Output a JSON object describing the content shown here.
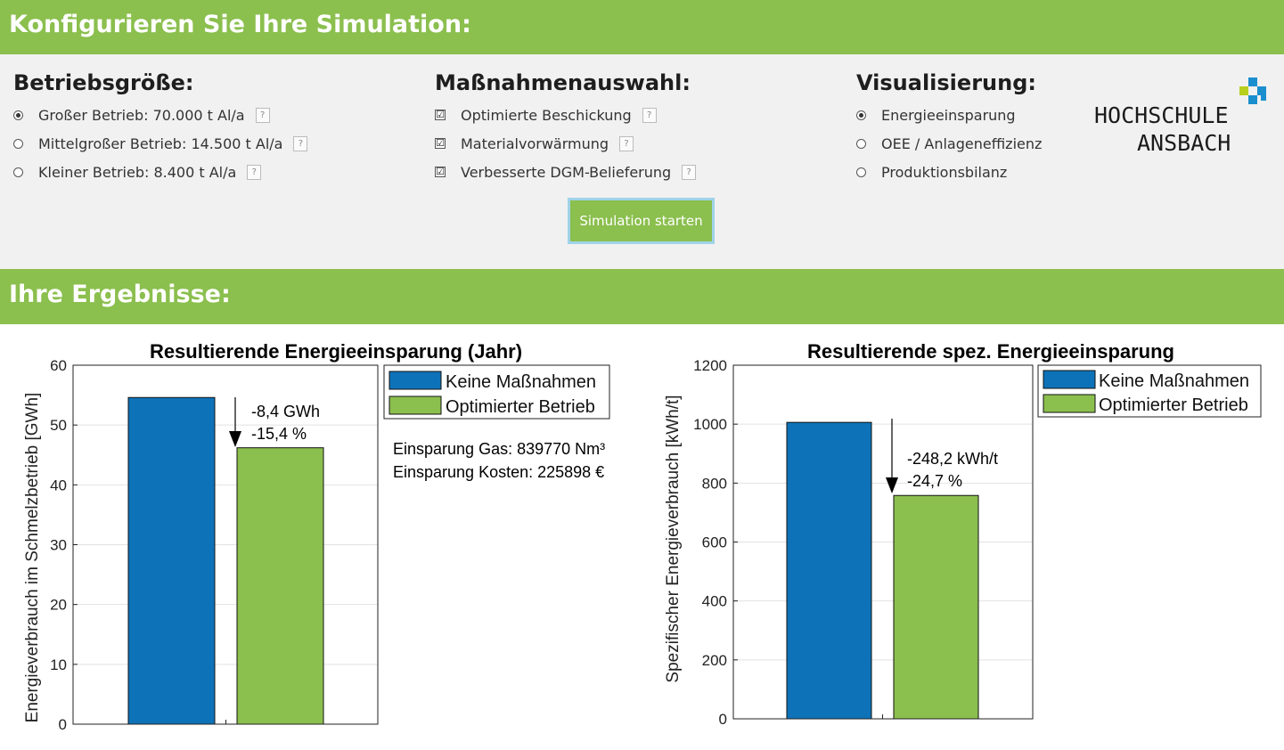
{
  "config_banner": {
    "title": "Konfigurieren Sie Ihre Simulation:"
  },
  "results_banner": {
    "title": "Ihre Ergebnisse:"
  },
  "colors": {
    "banner": "#8bbf4e",
    "series_none": "#0e72b8",
    "series_opt": "#8bbf4e",
    "logo_blue": "#1b8fce",
    "logo_lime": "#b9cf1e"
  },
  "size_group": {
    "heading": "Betriebsgröße:",
    "options": [
      {
        "label": "Großer Betrieb: 70.000 t Al/a",
        "selected": true
      },
      {
        "label": "Mittelgroßer Betrieb: 14.500 t Al/a",
        "selected": false
      },
      {
        "label": "Kleiner Betrieb: 8.400 t Al/a",
        "selected": false
      }
    ]
  },
  "measures_group": {
    "heading": "Maßnahmenauswahl:",
    "options": [
      {
        "label": "Optimierte Beschickung",
        "checked": true
      },
      {
        "label": "Materialvorwärmung",
        "checked": true
      },
      {
        "label": "Verbesserte DGM-Belieferung",
        "checked": true
      }
    ]
  },
  "viz_group": {
    "heading": "Visualisierung:",
    "options": [
      {
        "label": "Energieeinsparung",
        "selected": true
      },
      {
        "label": "OEE / Anlageneffizienz",
        "selected": false
      },
      {
        "label": "Produktionsbilanz",
        "selected": false
      }
    ]
  },
  "help_icon_text": "?",
  "check_mark": "☑",
  "start_button": {
    "label": "Simulation starten"
  },
  "logo": {
    "line1": "HOCHSCHULE",
    "line2": "ANSBACH"
  },
  "chart_data": [
    {
      "type": "bar",
      "title": "Resultierende Energieeinsparung (Jahr)",
      "ylabel": "Energieverbrauch im Schmelzbetrieb [GWh]",
      "ylim": [
        0,
        60
      ],
      "yticks": [
        0,
        10,
        20,
        30,
        40,
        50,
        60
      ],
      "grid": true,
      "legend_position": "top-right",
      "series": [
        {
          "name": "Keine Maßnahmen",
          "values": [
            54.6
          ]
        },
        {
          "name": "Optimierter Betrieb",
          "values": [
            46.2
          ]
        }
      ],
      "annotations": [
        "-8,4 GWh",
        "-15,4 %"
      ],
      "info_text": [
        "Einsparung Gas: 839770 Nm³",
        "Einsparung Kosten: 225898 €"
      ]
    },
    {
      "type": "bar",
      "title": "Resultierende spez. Energieeinsparung",
      "ylabel": "Spezifischer Energieverbrauch [kWh/t]",
      "ylim": [
        0,
        1200
      ],
      "yticks": [
        0,
        200,
        400,
        600,
        800,
        1000,
        1200
      ],
      "grid": true,
      "legend_position": "top-right",
      "series": [
        {
          "name": "Keine Maßnahmen",
          "values": [
            1006
          ]
        },
        {
          "name": "Optimierter Betrieb",
          "values": [
            758
          ]
        }
      ],
      "annotations": [
        "-248,2 kWh/t",
        "-24,7 %"
      ]
    }
  ]
}
